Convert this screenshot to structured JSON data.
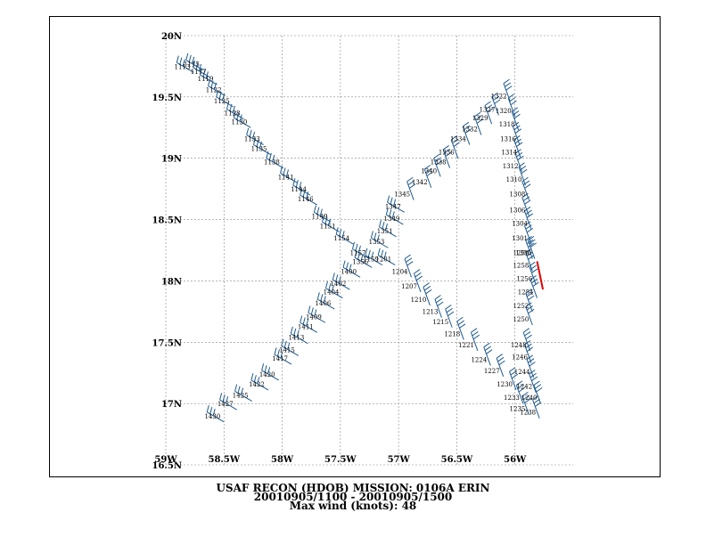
{
  "map": {
    "lon_min": -59.0,
    "lon_max": -55.5,
    "lat_min": 16.5,
    "lat_max": 20.0,
    "grid": "dotted",
    "lat_ticks": [
      {
        "value": 20.0,
        "label": "20N"
      },
      {
        "value": 19.5,
        "label": "19.5N"
      },
      {
        "value": 19.0,
        "label": "19N"
      },
      {
        "value": 18.5,
        "label": "18.5N"
      },
      {
        "value": 18.0,
        "label": "18N"
      },
      {
        "value": 17.5,
        "label": "17.5N"
      },
      {
        "value": 17.0,
        "label": "17N"
      },
      {
        "value": 16.5,
        "label": "16.5N"
      }
    ],
    "lon_ticks": [
      {
        "value": -59.0,
        "label": "59W"
      },
      {
        "value": -58.5,
        "label": "58.5W"
      },
      {
        "value": -58.0,
        "label": "58W"
      },
      {
        "value": -57.5,
        "label": "57.5W"
      },
      {
        "value": -57.0,
        "label": "57W"
      },
      {
        "value": -56.5,
        "label": "56.5W"
      },
      {
        "value": -56.0,
        "label": "56W"
      }
    ],
    "colors": {
      "barb": "#1f5a8f",
      "max_barb": "#e00000",
      "grid": "#888888",
      "text": "#000000"
    }
  },
  "caption": {
    "line1": "USAF RECON (HDOB) MISSION:  0106A   ERIN",
    "line2": "20010905/1100 - 20010905/1500",
    "line3": "Max wind (knots):   48"
  },
  "observations": [
    {
      "time": "1113",
      "lon": -58.76,
      "lat": 19.7
    },
    {
      "time": "1115",
      "lon": -58.68,
      "lat": 19.72
    },
    {
      "time": "1117",
      "lon": -58.62,
      "lat": 19.66
    },
    {
      "time": "1119",
      "lon": -58.56,
      "lat": 19.6
    },
    {
      "time": "1122",
      "lon": -58.49,
      "lat": 19.51
    },
    {
      "time": "1125",
      "lon": -58.42,
      "lat": 19.42
    },
    {
      "time": "1128",
      "lon": -58.33,
      "lat": 19.32
    },
    {
      "time": "1130",
      "lon": -58.27,
      "lat": 19.25
    },
    {
      "time": "1133",
      "lon": -58.16,
      "lat": 19.11
    },
    {
      "time": "1135",
      "lon": -58.1,
      "lat": 19.03
    },
    {
      "time": "1138",
      "lon": -57.99,
      "lat": 18.92
    },
    {
      "time": "1141",
      "lon": -57.87,
      "lat": 18.8
    },
    {
      "time": "1144",
      "lon": -57.76,
      "lat": 18.7
    },
    {
      "time": "1146",
      "lon": -57.7,
      "lat": 18.62
    },
    {
      "time": "1149",
      "lon": -57.58,
      "lat": 18.48
    },
    {
      "time": "1151",
      "lon": -57.51,
      "lat": 18.4
    },
    {
      "time": "1154",
      "lon": -57.39,
      "lat": 18.3
    },
    {
      "time": "1157",
      "lon": -57.25,
      "lat": 18.18
    },
    {
      "time": "1159",
      "lon": -57.14,
      "lat": 18.13
    },
    {
      "time": "1201",
      "lon": -57.03,
      "lat": 18.13
    },
    {
      "time": "1204",
      "lon": -56.89,
      "lat": 18.03
    },
    {
      "time": "1207",
      "lon": -56.81,
      "lat": 17.91
    },
    {
      "time": "1210",
      "lon": -56.73,
      "lat": 17.8
    },
    {
      "time": "1213",
      "lon": -56.63,
      "lat": 17.7
    },
    {
      "time": "1215",
      "lon": -56.54,
      "lat": 17.62
    },
    {
      "time": "1218",
      "lon": -56.44,
      "lat": 17.52
    },
    {
      "time": "1221",
      "lon": -56.32,
      "lat": 17.43
    },
    {
      "time": "1224",
      "lon": -56.21,
      "lat": 17.31
    },
    {
      "time": "1227",
      "lon": -56.1,
      "lat": 17.22
    },
    {
      "time": "1230",
      "lon": -55.99,
      "lat": 17.11
    },
    {
      "time": "1233",
      "lon": -55.93,
      "lat": 17.0
    },
    {
      "time": "1235",
      "lon": -55.88,
      "lat": 16.91
    },
    {
      "time": "1238",
      "lon": -55.79,
      "lat": 16.88
    },
    {
      "time": "1240",
      "lon": -55.78,
      "lat": 17.0
    },
    {
      "time": "1242",
      "lon": -55.82,
      "lat": 17.09
    },
    {
      "time": "1244",
      "lon": -55.84,
      "lat": 17.21
    },
    {
      "time": "1246",
      "lon": -55.86,
      "lat": 17.33
    },
    {
      "time": "1248",
      "lon": -55.87,
      "lat": 17.43
    },
    {
      "time": "1250",
      "lon": -55.85,
      "lat": 17.64
    },
    {
      "time": "1252",
      "lon": -55.85,
      "lat": 17.75
    },
    {
      "time": "1254",
      "lon": -55.81,
      "lat": 17.86
    },
    {
      "time": "1256",
      "lon": -55.82,
      "lat": 17.97
    },
    {
      "time": "1258",
      "lon": -55.85,
      "lat": 18.08
    },
    {
      "time": "1259",
      "lon": -55.85,
      "lat": 18.18
    },
    {
      "time": "1300",
      "lon": -55.83,
      "lat": 18.18
    },
    {
      "time": "1301",
      "lon": -55.86,
      "lat": 18.3
    },
    {
      "time": "1304",
      "lon": -55.86,
      "lat": 18.42
    },
    {
      "time": "1306",
      "lon": -55.88,
      "lat": 18.53
    },
    {
      "time": "1308",
      "lon": -55.88,
      "lat": 18.66
    },
    {
      "time": "1310",
      "lon": -55.91,
      "lat": 18.78
    },
    {
      "time": "1312",
      "lon": -55.94,
      "lat": 18.89
    },
    {
      "time": "1314",
      "lon": -55.95,
      "lat": 19.0
    },
    {
      "time": "1316",
      "lon": -55.96,
      "lat": 19.11
    },
    {
      "time": "1318",
      "lon": -55.97,
      "lat": 19.23
    },
    {
      "time": "1320",
      "lon": -56.0,
      "lat": 19.34
    },
    {
      "time": "1322",
      "lon": -56.04,
      "lat": 19.46
    },
    {
      "time": "1327",
      "lon": -56.14,
      "lat": 19.35
    },
    {
      "time": "1329",
      "lon": -56.2,
      "lat": 19.28
    },
    {
      "time": "1332",
      "lon": -56.29,
      "lat": 19.19
    },
    {
      "time": "1334",
      "lon": -56.39,
      "lat": 19.11
    },
    {
      "time": "1336",
      "lon": -56.49,
      "lat": 19.0
    },
    {
      "time": "1338",
      "lon": -56.56,
      "lat": 18.92
    },
    {
      "time": "1340",
      "lon": -56.64,
      "lat": 18.85
    },
    {
      "time": "1342",
      "lon": -56.72,
      "lat": 18.76
    },
    {
      "time": "1345",
      "lon": -56.87,
      "lat": 18.66
    },
    {
      "time": "1347",
      "lon": -56.95,
      "lat": 18.56
    },
    {
      "time": "1349",
      "lon": -56.96,
      "lat": 18.46
    },
    {
      "time": "1351",
      "lon": -57.02,
      "lat": 18.36
    },
    {
      "time": "1353",
      "lon": -57.09,
      "lat": 18.27
    },
    {
      "time": "1356",
      "lon": -57.23,
      "lat": 18.11
    },
    {
      "time": "1400",
      "lon": -57.33,
      "lat": 18.03
    },
    {
      "time": "1402",
      "lon": -57.42,
      "lat": 17.93
    },
    {
      "time": "1404",
      "lon": -57.48,
      "lat": 17.86
    },
    {
      "time": "1406",
      "lon": -57.55,
      "lat": 17.77
    },
    {
      "time": "1409",
      "lon": -57.63,
      "lat": 17.66
    },
    {
      "time": "1411",
      "lon": -57.7,
      "lat": 17.58
    },
    {
      "time": "1413",
      "lon": -57.78,
      "lat": 17.49
    },
    {
      "time": "1415",
      "lon": -57.86,
      "lat": 17.39
    },
    {
      "time": "1417",
      "lon": -57.92,
      "lat": 17.32
    },
    {
      "time": "1420",
      "lon": -58.03,
      "lat": 17.19
    },
    {
      "time": "1422",
      "lon": -58.12,
      "lat": 17.11
    },
    {
      "time": "1425",
      "lon": -58.26,
      "lat": 17.02
    },
    {
      "time": "1427",
      "lon": -58.39,
      "lat": 16.95
    },
    {
      "time": "1430",
      "lon": -58.5,
      "lat": 16.85
    }
  ],
  "max_wind_segment": [
    {
      "lon": -55.81,
      "lat": 18.16
    },
    {
      "lon": -55.76,
      "lat": 17.93
    }
  ]
}
